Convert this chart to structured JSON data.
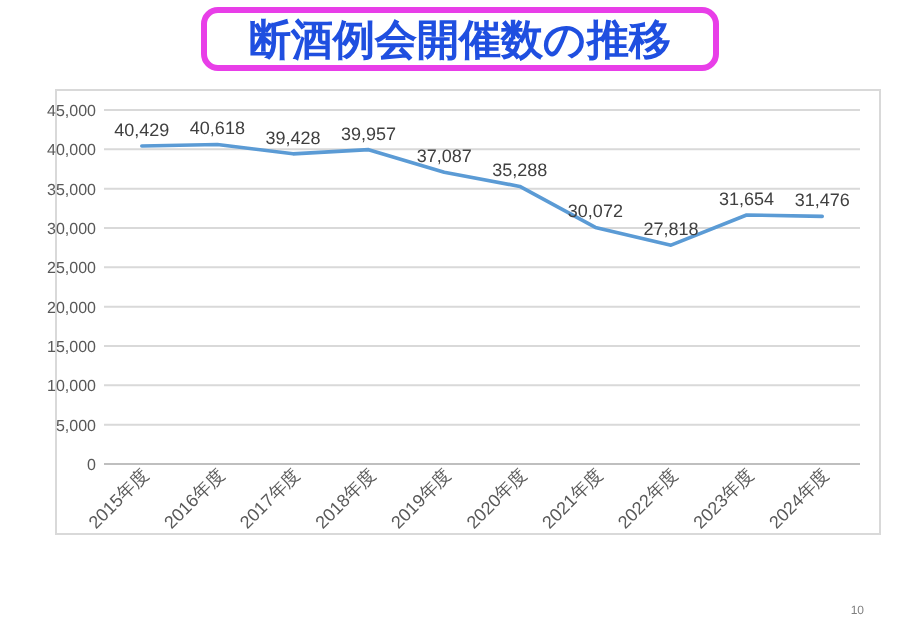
{
  "chart_data": {
    "type": "line",
    "title": "断酒例会開催数の推移",
    "categories": [
      "2015年度",
      "2016年度",
      "2017年度",
      "2018年度",
      "2019年度",
      "2020年度",
      "2021年度",
      "2022年度",
      "2023年度",
      "2024年度"
    ],
    "series": [
      {
        "color": "#5b9bd5",
        "values": [
          40429,
          40618,
          39428,
          39957,
          37087,
          35288,
          30072,
          27818,
          31654,
          31476
        ]
      }
    ],
    "ylim": [
      0,
      45000
    ],
    "yticks": [
      {
        "value": 0,
        "label": "0"
      },
      {
        "value": 5000,
        "label": "5,000"
      },
      {
        "value": 10000,
        "label": "10,000"
      },
      {
        "value": 15000,
        "label": "15,000"
      },
      {
        "value": 20000,
        "label": "20,000"
      },
      {
        "value": 25000,
        "label": "25,000"
      },
      {
        "value": 30000,
        "label": "30,000"
      },
      {
        "value": 35000,
        "label": "35,000"
      },
      {
        "value": 40000,
        "label": "40,000"
      },
      {
        "value": 45000,
        "label": "45,000"
      }
    ],
    "value_labels": [
      "40,429",
      "40,618",
      "39,428",
      "39,957",
      "37,087",
      "35,288",
      "30,072",
      "27,818",
      "31,654",
      "31,476"
    ],
    "grid": "y",
    "marker": "none",
    "line_style": "solid",
    "annotations": [
      "10"
    ]
  }
}
